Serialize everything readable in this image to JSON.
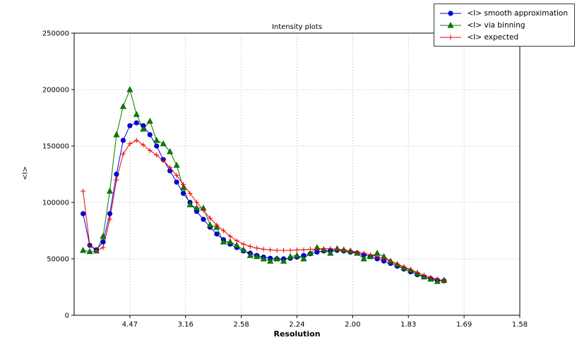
{
  "colors": {
    "background": "#ffffff",
    "axes": "#000000",
    "grid": "#b4b4b4"
  },
  "chart_data": {
    "type": "line",
    "title": "Intensity plots",
    "xlabel": "Resolution",
    "ylabel": "<I>",
    "grid": true,
    "legend_position": "top-right",
    "x_axis": {
      "xlim": [
        0.0,
        0.4
      ],
      "tick_positions": [
        0.05,
        0.1,
        0.15,
        0.2,
        0.25,
        0.3,
        0.35,
        0.4
      ],
      "tick_labels": [
        "4.47",
        "3.16",
        "2.58",
        "2.24",
        "2.00",
        "1.83",
        "1.69",
        "1.58"
      ]
    },
    "y_axis": {
      "ylim": [
        0,
        250000
      ],
      "tick_positions": [
        0,
        50000,
        100000,
        150000,
        200000,
        250000
      ],
      "tick_labels": [
        "0",
        "50000",
        "100000",
        "150000",
        "200000",
        "250000"
      ]
    },
    "x": [
      0.008,
      0.014,
      0.02,
      0.026,
      0.032,
      0.038,
      0.044,
      0.05,
      0.056,
      0.062,
      0.068,
      0.074,
      0.08,
      0.086,
      0.092,
      0.098,
      0.104,
      0.11,
      0.116,
      0.122,
      0.128,
      0.134,
      0.14,
      0.146,
      0.152,
      0.158,
      0.164,
      0.17,
      0.176,
      0.182,
      0.188,
      0.194,
      0.2,
      0.206,
      0.212,
      0.218,
      0.224,
      0.23,
      0.236,
      0.242,
      0.248,
      0.254,
      0.26,
      0.266,
      0.272,
      0.278,
      0.284,
      0.29,
      0.296,
      0.302,
      0.308,
      0.314,
      0.32,
      0.326,
      0.332
    ],
    "series": [
      {
        "name": "<I> smooth approximation",
        "color": "#0000ee",
        "edge_color": "#00008b",
        "marker": "circle",
        "values": [
          90000,
          62000,
          58000,
          65000,
          90000,
          125000,
          155000,
          168000,
          170500,
          168000,
          160000,
          150000,
          138000,
          128000,
          118000,
          108000,
          100000,
          92000,
          85000,
          78000,
          72000,
          67000,
          63000,
          60000,
          57000,
          55000,
          53000,
          51500,
          50500,
          50000,
          50000,
          50500,
          51500,
          53000,
          54500,
          56000,
          57000,
          57500,
          57500,
          57000,
          56000,
          55000,
          53500,
          52000,
          50000,
          48000,
          46000,
          43500,
          41000,
          38500,
          36000,
          34000,
          32500,
          31000,
          30500
        ]
      },
      {
        "name": "<I> via binning",
        "color": "#008000",
        "edge_color": "#004d00",
        "marker": "triangle",
        "values": [
          57500,
          56500,
          57000,
          70000,
          110000,
          160000,
          185000,
          200000,
          178000,
          165000,
          172000,
          155000,
          152000,
          145000,
          133000,
          113000,
          98000,
          95000,
          95000,
          80000,
          78000,
          65000,
          65000,
          62000,
          58000,
          53000,
          52000,
          50000,
          48000,
          50000,
          48000,
          52000,
          53000,
          50000,
          55000,
          60000,
          58000,
          55000,
          59000,
          58000,
          57000,
          55000,
          50000,
          52000,
          55000,
          52000,
          48000,
          45000,
          42000,
          40000,
          37000,
          34000,
          32000,
          30000,
          31000
        ]
      },
      {
        "name": "<I> expected",
        "color": "#ee0000",
        "edge_color": "#ee0000",
        "marker": "plus",
        "values": [
          110000,
          62000,
          57000,
          60000,
          85000,
          120000,
          143000,
          152000,
          155000,
          151000,
          146000,
          142000,
          137000,
          131000,
          124000,
          116000,
          108000,
          100000,
          93000,
          86000,
          80000,
          75000,
          70000,
          66000,
          63000,
          61000,
          59500,
          58500,
          58000,
          57500,
          57500,
          57500,
          58000,
          58000,
          58500,
          58500,
          59000,
          59000,
          58500,
          58000,
          57000,
          56000,
          55000,
          53500,
          52000,
          50000,
          48000,
          45500,
          43000,
          40500,
          38000,
          35500,
          33500,
          32000,
          30500
        ]
      }
    ]
  }
}
